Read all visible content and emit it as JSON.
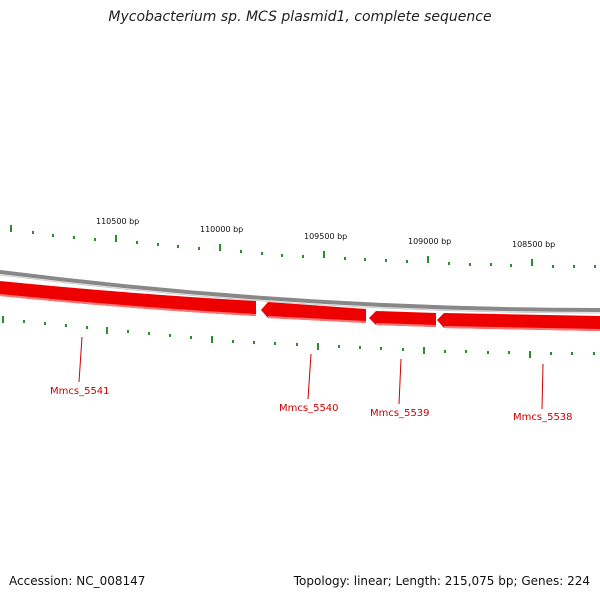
{
  "title": "Mycobacterium sp. MCS plasmid1, complete sequence",
  "accession_label": "Accession: NC_008147",
  "summary_label": "Topology: linear; Length: 215,075 bp; Genes: 224",
  "ticks": [
    "110500 bp",
    "110000 bp",
    "109500 bp",
    "109000 bp",
    "108500 bp"
  ],
  "genes": [
    "Mmcs_5541",
    "Mmcs_5540",
    "Mmcs_5539",
    "Mmcs_5538"
  ],
  "colors": {
    "gene": "#ee0000",
    "tick": "#2e8b2e",
    "backbone": "#888888",
    "label": "#cc0000"
  }
}
